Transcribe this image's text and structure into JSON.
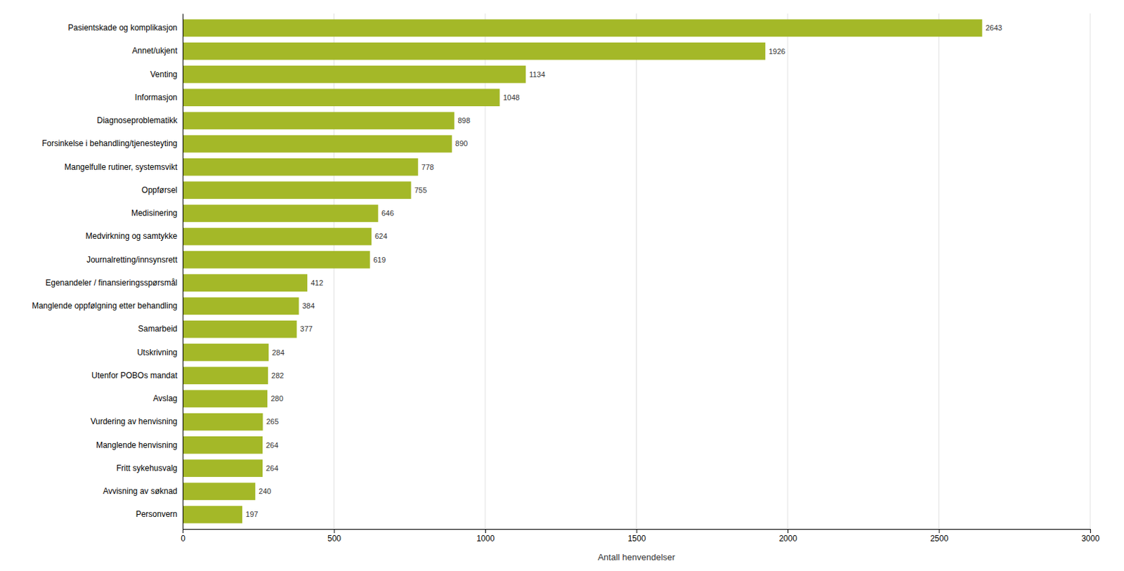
{
  "chart_data": {
    "type": "bar",
    "orientation": "horizontal",
    "categories": [
      "Personvern",
      "Avvisning av søknad",
      "Fritt sykehusvalg",
      "Manglende henvisning",
      "Vurdering av henvisning",
      "Avslag",
      "Utenfor POBOs mandat",
      "Utskrivning",
      "Samarbeid",
      "Manglende oppfølgning etter behandling",
      "Egenandeler / finansieringsspørsmål",
      "Journalretting/innsynsrett",
      "Medvirkning og samtykke",
      "Medisinering",
      "Oppførsel",
      "Mangelfulle rutiner, systemsvikt",
      "Forsinkelse i behandling/tjenesteyting",
      "Diagnoseproblematikk",
      "Informasjon",
      "Venting",
      "Annet/ukjent",
      "Pasientskade og komplikasjon"
    ],
    "values": [
      197,
      240,
      264,
      264,
      265,
      280,
      282,
      284,
      377,
      384,
      412,
      619,
      624,
      646,
      755,
      778,
      890,
      898,
      1048,
      1134,
      1926,
      2643
    ],
    "color": "#a4b828",
    "xlabel": "Antall henvendelser",
    "xlim": [
      0,
      3000
    ],
    "xticks": [
      0,
      500,
      1000,
      1500,
      2000,
      2500,
      3000
    ],
    "grid": true,
    "data_labels": true
  }
}
